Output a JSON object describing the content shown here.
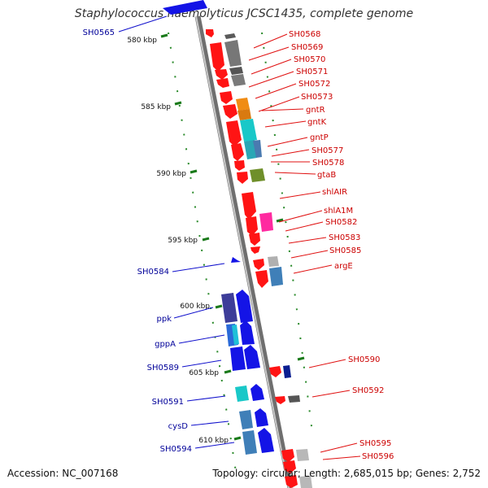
{
  "title": "Staphylococcus haemolyticus JCSC1435, complete genome",
  "footer": {
    "accession": "Accession: NC_007168",
    "topology": "Topology: circular; Length: 2,685,015 bp; Genes: 2,752"
  },
  "scale_labels": [
    "580 kbp",
    "585 kbp",
    "590 kbp",
    "595 kbp",
    "600 kbp",
    "605 kbp",
    "610 kbp"
  ],
  "right_gene_labels": [
    "SH0568",
    "SH0569",
    "SH0570",
    "SH0571",
    "SH0572",
    "SH0573",
    "gntR",
    "gntK",
    "gntP",
    "SH0577",
    "SH0578",
    "gtaB",
    "shlAIR",
    "shlA1M",
    "SH0582",
    "SH0583",
    "SH0585",
    "argE",
    "SH0590",
    "SH0592",
    "SH0595",
    "SH0596"
  ],
  "left_gene_labels": [
    "SH0565",
    "SH0584",
    "ppk",
    "gppA",
    "SH0589",
    "SH0591",
    "cysD",
    "SH0594"
  ],
  "colors": {
    "forward_red": "#ff1a1a",
    "reverse_blue": "#1414e6",
    "label_red": "#cc0000",
    "label_blue": "#000099",
    "backbone": "#888888",
    "tick_green": "#1a8a1a"
  }
}
